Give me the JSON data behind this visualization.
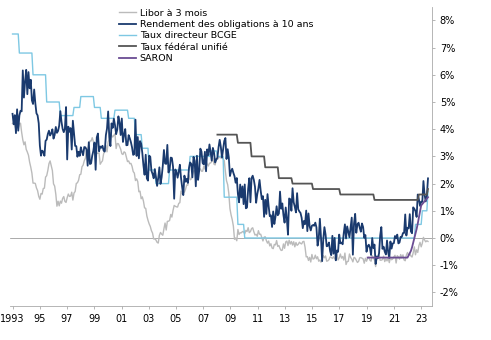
{
  "libor_color": "#bbbbbb",
  "bond10_color": "#1a3a6e",
  "bcge_color": "#7ec8e3",
  "federal_color": "#555555",
  "saron_color": "#6a4c93",
  "legend_labels": [
    "Libor à 3 mois",
    "Rendement des obligations à 10 ans",
    "Taux directeur BCGE",
    "Taux fédéral unifié",
    "SARON"
  ],
  "ylim": [
    -0.025,
    0.085
  ],
  "yticks": [
    -0.02,
    -0.01,
    0.0,
    0.01,
    0.02,
    0.03,
    0.04,
    0.05,
    0.06,
    0.07,
    0.08
  ],
  "xticks": [
    1993,
    1995,
    1997,
    1999,
    2001,
    2003,
    2005,
    2007,
    2009,
    2011,
    2013,
    2015,
    2017,
    2019,
    2021,
    2023
  ],
  "xlim": [
    1992.8,
    2023.8
  ]
}
